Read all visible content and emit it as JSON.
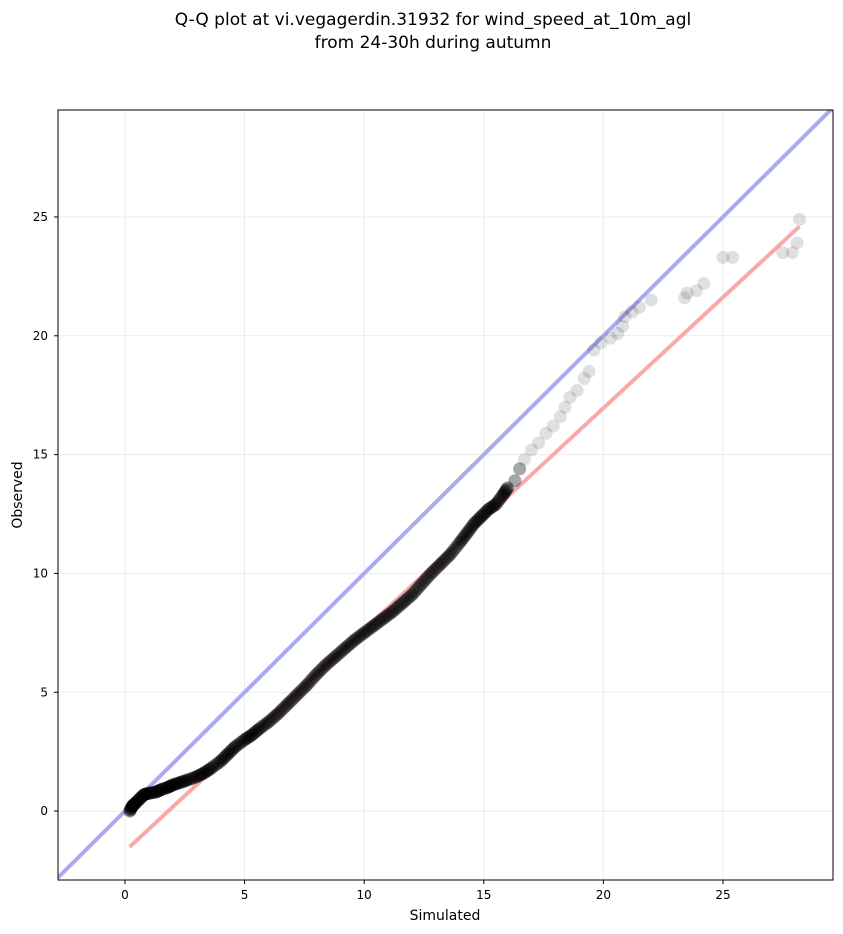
{
  "chart_data": {
    "type": "scatter",
    "title": [
      "Q-Q plot at vi.vegagerdin.31932 for wind_speed_at_10m_agl",
      "from 24-30h during autumn"
    ],
    "xlabel": "Simulated",
    "ylabel": "Observed",
    "xlim": [
      -2.8,
      29.6
    ],
    "ylim": [
      -2.9,
      29.5
    ],
    "xticks": [
      0,
      5,
      10,
      15,
      20,
      25
    ],
    "yticks": [
      0,
      5,
      10,
      15,
      20,
      25
    ],
    "grid": true,
    "legend": "none",
    "reference_line": {
      "name": "",
      "color": "#aaaaf0",
      "points": [
        [
          -2.8,
          -2.8
        ],
        [
          29.6,
          29.6
        ]
      ]
    },
    "fit_line": {
      "name": "",
      "color": "#f8aaaa",
      "points": [
        [
          0.2,
          -1.5
        ],
        [
          28.2,
          24.6
        ]
      ]
    },
    "points_color": "#000000",
    "points": [
      [
        0.2,
        0.0
      ],
      [
        0.3,
        0.2
      ],
      [
        0.4,
        0.3
      ],
      [
        0.6,
        0.5
      ],
      [
        0.8,
        0.7
      ],
      [
        1.0,
        0.75
      ],
      [
        1.3,
        0.8
      ],
      [
        1.5,
        0.9
      ],
      [
        1.8,
        1.0
      ],
      [
        2.0,
        1.1
      ],
      [
        2.3,
        1.2
      ],
      [
        2.6,
        1.3
      ],
      [
        3.0,
        1.45
      ],
      [
        3.3,
        1.6
      ],
      [
        3.6,
        1.8
      ],
      [
        4.0,
        2.1
      ],
      [
        4.3,
        2.4
      ],
      [
        4.6,
        2.7
      ],
      [
        5.0,
        3.0
      ],
      [
        5.3,
        3.2
      ],
      [
        5.6,
        3.45
      ],
      [
        6.0,
        3.75
      ],
      [
        6.4,
        4.1
      ],
      [
        6.8,
        4.5
      ],
      [
        7.2,
        4.9
      ],
      [
        7.6,
        5.3
      ],
      [
        8.0,
        5.75
      ],
      [
        8.4,
        6.15
      ],
      [
        8.8,
        6.5
      ],
      [
        9.2,
        6.85
      ],
      [
        9.6,
        7.2
      ],
      [
        10.0,
        7.5
      ],
      [
        10.4,
        7.8
      ],
      [
        10.8,
        8.1
      ],
      [
        11.2,
        8.4
      ],
      [
        11.6,
        8.75
      ],
      [
        12.0,
        9.1
      ],
      [
        12.4,
        9.55
      ],
      [
        12.8,
        10.0
      ],
      [
        13.2,
        10.4
      ],
      [
        13.6,
        10.8
      ],
      [
        14.0,
        11.3
      ],
      [
        14.3,
        11.7
      ],
      [
        14.6,
        12.1
      ],
      [
        14.9,
        12.4
      ],
      [
        15.2,
        12.7
      ],
      [
        15.5,
        12.9
      ],
      [
        15.8,
        13.3
      ],
      [
        16.0,
        13.6
      ],
      [
        16.3,
        13.9
      ],
      [
        16.5,
        14.4
      ],
      [
        16.7,
        14.8
      ],
      [
        17.0,
        15.2
      ],
      [
        17.3,
        15.5
      ],
      [
        17.6,
        15.9
      ],
      [
        17.9,
        16.2
      ],
      [
        18.2,
        16.6
      ],
      [
        18.4,
        17.0
      ],
      [
        18.6,
        17.4
      ],
      [
        18.9,
        17.7
      ],
      [
        19.2,
        18.2
      ],
      [
        19.4,
        18.5
      ],
      [
        19.6,
        19.4
      ],
      [
        19.9,
        19.7
      ],
      [
        20.3,
        19.9
      ],
      [
        20.6,
        20.1
      ],
      [
        20.8,
        20.4
      ],
      [
        20.9,
        20.8
      ],
      [
        21.2,
        21.0
      ],
      [
        21.5,
        21.2
      ],
      [
        22.0,
        21.5
      ],
      [
        23.4,
        21.6
      ],
      [
        23.5,
        21.8
      ],
      [
        23.9,
        21.9
      ],
      [
        24.2,
        22.2
      ],
      [
        25.0,
        23.3
      ],
      [
        25.4,
        23.3
      ],
      [
        27.5,
        23.5
      ],
      [
        27.9,
        23.5
      ],
      [
        28.1,
        23.9
      ],
      [
        28.2,
        24.9
      ]
    ]
  }
}
